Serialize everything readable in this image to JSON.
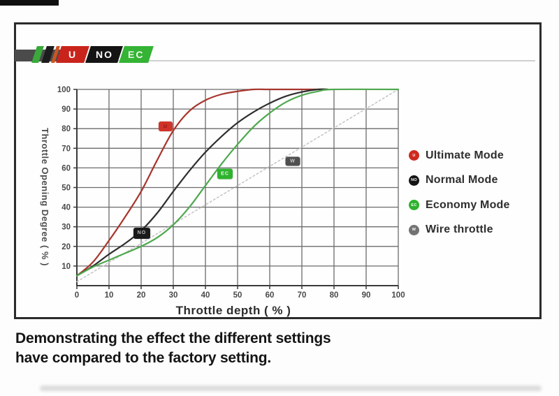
{
  "logo": {
    "bar_color": "#4b4b4b",
    "stripes": [
      {
        "name": "green-stripe",
        "color": "#3aa83a"
      },
      {
        "name": "black-stripe",
        "color": "#1c1c1c"
      },
      {
        "name": "orange-stripe",
        "color": "#cc5522"
      }
    ],
    "badges": [
      {
        "label": "U",
        "color": "#c9241c",
        "text_color": "#ffffff"
      },
      {
        "label": "NO",
        "color": "#141414",
        "text_color": "#ffffff"
      },
      {
        "label": "EC",
        "color": "#35b335",
        "text_color": "#eafbe8"
      }
    ]
  },
  "chart_data": {
    "type": "line",
    "title": "",
    "xlabel": "Throttle depth ( % )",
    "ylabel": "Throttle Opening Degree ( % )",
    "xlim": [
      0,
      100
    ],
    "ylim": [
      0,
      100
    ],
    "x_ticks": [
      0,
      10,
      20,
      30,
      40,
      50,
      60,
      70,
      80,
      90,
      100
    ],
    "y_ticks": [
      10,
      20,
      30,
      40,
      50,
      60,
      70,
      80,
      90,
      100
    ],
    "grid": true,
    "axis_color": "#3a3a3a",
    "grid_color": "#6b6b6b",
    "tick_label_color": "#4a4a4a",
    "series": [
      {
        "name": "Ultimate Mode",
        "color": "#a6352d",
        "style": "solid",
        "points": [
          [
            0,
            5
          ],
          [
            5,
            12
          ],
          [
            10,
            23
          ],
          [
            15,
            35
          ],
          [
            20,
            48
          ],
          [
            25,
            64
          ],
          [
            30,
            79
          ],
          [
            35,
            89
          ],
          [
            40,
            94.5
          ],
          [
            45,
            97.5
          ],
          [
            50,
            99
          ],
          [
            55,
            100
          ],
          [
            60,
            100
          ],
          [
            70,
            100
          ],
          [
            78,
            100
          ]
        ]
      },
      {
        "name": "Normal Mode",
        "color": "#2e2e2e",
        "style": "solid",
        "points": [
          [
            0,
            5
          ],
          [
            5,
            10
          ],
          [
            10,
            16
          ],
          [
            15,
            21.5
          ],
          [
            20,
            28
          ],
          [
            25,
            37
          ],
          [
            30,
            48
          ],
          [
            35,
            58.5
          ],
          [
            40,
            68
          ],
          [
            45,
            76
          ],
          [
            50,
            83
          ],
          [
            55,
            88.5
          ],
          [
            60,
            93
          ],
          [
            65,
            96.5
          ],
          [
            70,
            98.7
          ],
          [
            75,
            100
          ],
          [
            78,
            100
          ]
        ]
      },
      {
        "name": "Economy Mode",
        "color": "#4ea84e",
        "style": "solid",
        "points": [
          [
            0,
            5
          ],
          [
            5,
            9.5
          ],
          [
            10,
            13
          ],
          [
            15,
            16.5
          ],
          [
            20,
            20
          ],
          [
            25,
            24.5
          ],
          [
            30,
            31
          ],
          [
            35,
            40
          ],
          [
            40,
            51
          ],
          [
            45,
            62
          ],
          [
            50,
            72
          ],
          [
            55,
            81
          ],
          [
            60,
            88
          ],
          [
            65,
            93.5
          ],
          [
            70,
            97
          ],
          [
            75,
            99
          ],
          [
            80,
            100
          ],
          [
            100,
            100
          ]
        ]
      },
      {
        "name": "Wire throttle",
        "color": "#c6c6c6",
        "style": "dashed",
        "points": [
          [
            0,
            2
          ],
          [
            100,
            100
          ]
        ]
      }
    ],
    "curve_badges": [
      {
        "label": "U",
        "x": 27.6,
        "y": 81,
        "color": "#d1332a",
        "text_color": "#8f1410",
        "width": 20,
        "height": 14
      },
      {
        "label": "NO",
        "x": 20.2,
        "y": 26.7,
        "color": "#1b1b1b",
        "text_color": "#bdbdbd",
        "width": 24,
        "height": 16
      },
      {
        "label": "EC",
        "x": 46.1,
        "y": 57,
        "color": "#2fb32f",
        "text_color": "#e8fbe6",
        "width": 22,
        "height": 15
      },
      {
        "label": "W",
        "x": 67.2,
        "y": 63.4,
        "color": "#4f4f4f",
        "text_color": "#c9c9c9",
        "width": 21,
        "height": 13
      }
    ],
    "legend": {
      "position": "right",
      "items": [
        {
          "label": "Ultimate Mode",
          "icon_label": "U",
          "color": "#cf2a1f"
        },
        {
          "label": "Normal Mode",
          "icon_label": "NO",
          "color": "#141414"
        },
        {
          "label": "Economy Mode",
          "icon_label": "EC",
          "color": "#2db22d"
        },
        {
          "label": "Wire throttle",
          "icon_label": "W",
          "color": "#737373"
        }
      ]
    }
  },
  "caption": {
    "line1": "Demonstrating the effect the different settings",
    "line2": "have compared to the factory setting."
  }
}
